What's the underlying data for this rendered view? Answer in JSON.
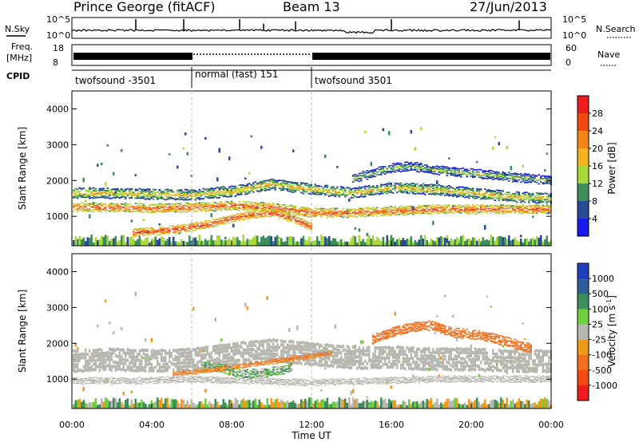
{
  "header": {
    "station": "Prince George (fitACF)",
    "beam": "Beam 13",
    "date": "27/Jun/2013"
  },
  "strips": {
    "nsky": {
      "label": "N.Sky",
      "ticks": [
        "10^5",
        "10^0"
      ]
    },
    "nsearch": {
      "label": "N.Search",
      "ticks": [
        "10^5",
        "10^0"
      ]
    },
    "freq": {
      "label_line1": "Freq.",
      "label_line2": "[MHz]",
      "ticks": [
        "18",
        "8"
      ]
    },
    "nave": {
      "label": "Nave",
      "ticks": [
        "60",
        "0"
      ]
    },
    "cpid": {
      "label": "CPID",
      "segments": [
        {
          "name": "twofsound -3501",
          "start_h": 0,
          "end_h": 6
        },
        {
          "name": "normal (fast) 151",
          "start_h": 6,
          "end_h": 12
        },
        {
          "name": "twofsound 3501",
          "start_h": 12,
          "end_h": 24
        }
      ]
    }
  },
  "time_axis": {
    "label": "Time UT",
    "ticks": [
      "00:00",
      "04:00",
      "08:00",
      "12:00",
      "16:00",
      "20:00",
      "00:00"
    ],
    "range_h": [
      0,
      24
    ]
  },
  "power_colorbar": {
    "label": "Power [dB]",
    "ticks": [
      "28",
      "24",
      "20",
      "16",
      "12",
      "8",
      "4"
    ],
    "colors": [
      "#ee1c1c",
      "#f04a10",
      "#f3841a",
      "#f6b21e",
      "#a8d83a",
      "#3d8e5a",
      "#2b4a96",
      "#1a1aee"
    ]
  },
  "velocity_colorbar": {
    "label": "Velocity [m s",
    "label_sup": "-1",
    "label_end": "]",
    "ticks": [
      "1000",
      "500",
      "100",
      "25",
      "-25",
      "-100",
      "-500",
      "-1000"
    ],
    "colors": [
      "#1f3fbf",
      "#2b5f9a",
      "#3d8e5a",
      "#6fce3c",
      "#b8b8b0",
      "#f09a1a",
      "#f27020",
      "#f34a14",
      "#ee1c1c"
    ]
  },
  "chart_data": [
    {
      "type": "heatmap",
      "title": "Power",
      "ylabel": "Slant Range [km]",
      "xlabel": "",
      "ylim": [
        180,
        4500
      ],
      "yticks": [
        "4000",
        "3000",
        "2000",
        "1000"
      ],
      "y_tick_values": [
        4000,
        3000,
        2000,
        1000
      ],
      "x_range_h": [
        0,
        24
      ],
      "bands": [
        {
          "t": [
            0,
            2,
            4,
            6,
            8,
            10,
            12,
            14,
            16,
            18,
            20,
            22,
            24
          ],
          "range_km": [
            1250,
            1250,
            1230,
            1250,
            1300,
            1250,
            1100,
            1100,
            1150,
            1200,
            1200,
            1200,
            1200
          ],
          "width_km": 250,
          "db": 26
        },
        {
          "t": [
            0,
            2,
            4,
            6,
            8,
            10,
            12,
            14,
            16,
            18,
            20,
            22,
            24
          ],
          "range_km": [
            1650,
            1650,
            1620,
            1600,
            1700,
            1900,
            1750,
            1650,
            1800,
            1750,
            1650,
            1550,
            1500
          ],
          "width_km": 300,
          "db": 18
        },
        {
          "t": [
            3,
            5,
            7,
            8,
            9,
            10,
            11,
            12
          ],
          "range_km": [
            550,
            620,
            800,
            950,
            1050,
            1100,
            950,
            700
          ],
          "width_km": 220,
          "db": 28
        },
        {
          "t": [
            14,
            15,
            16,
            17,
            18,
            19,
            20,
            21,
            22,
            23,
            24
          ],
          "range_km": [
            2050,
            2200,
            2350,
            2400,
            2300,
            2250,
            2200,
            2150,
            2100,
            2050,
            2000
          ],
          "width_km": 250,
          "db": 14
        }
      ]
    },
    {
      "type": "heatmap",
      "title": "Velocity",
      "ylabel": "Slant Range [km]",
      "xlabel": "Time UT",
      "ylim": [
        180,
        4500
      ],
      "yticks": [
        "4000",
        "3000",
        "2000",
        "1000"
      ],
      "y_tick_values": [
        4000,
        3000,
        2000,
        1000
      ],
      "x_range_h": [
        0,
        24
      ],
      "bands": [
        {
          "t": [
            0,
            2,
            4,
            6,
            8,
            10,
            12,
            14,
            16,
            18,
            20,
            22,
            24
          ],
          "range_km": [
            1500,
            1550,
            1500,
            1550,
            1700,
            1800,
            1700,
            1600,
            1600,
            1550,
            1550,
            1500,
            1500
          ],
          "width_km": 650,
          "v": 0
        },
        {
          "t": [
            0,
            3,
            6,
            9,
            12,
            15,
            18,
            21,
            24
          ],
          "range_km": [
            950,
            950,
            1000,
            950,
            900,
            950,
            1000,
            1000,
            1000
          ],
          "width_km": 180,
          "v": 0
        },
        {
          "t": [
            6.5,
            7.5,
            8.5,
            9.5,
            10.5,
            11
          ],
          "range_km": [
            1350,
            1300,
            1150,
            1150,
            1250,
            1350
          ],
          "width_km": 250,
          "v": 60
        },
        {
          "t": [
            15,
            16,
            17,
            18,
            19,
            20,
            21,
            22,
            23
          ],
          "range_km": [
            2100,
            2300,
            2450,
            2500,
            2300,
            2250,
            2150,
            2000,
            1850
          ],
          "width_km": 260,
          "v": -200
        },
        {
          "t": [
            5,
            6,
            7,
            12,
            13
          ],
          "range_km": [
            1150,
            1200,
            1250,
            1650,
            1750
          ],
          "width_km": 120,
          "v": -150
        }
      ]
    }
  ]
}
